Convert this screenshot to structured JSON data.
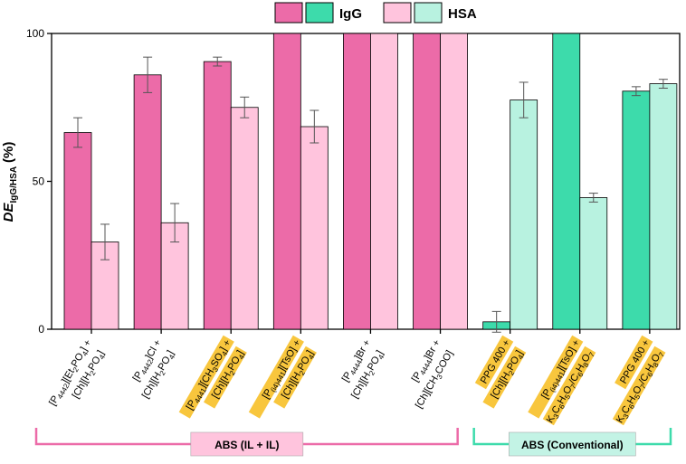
{
  "chart_data": {
    "type": "bar",
    "ylabel": {
      "main": "DE",
      "sub": "IgG/HSA",
      "unit": "(%)"
    },
    "ylim": [
      0,
      100
    ],
    "yticks": [
      "0",
      "50",
      "100"
    ],
    "legend": {
      "placement": "top-center",
      "IgG": "IgG",
      "HSA": "HSA"
    },
    "colors": {
      "ionic_IgG": "#ec6ba8",
      "ionic_HSA": "#ffc4dd",
      "conv_IgG": "#3ddbab",
      "conv_HSA": "#b8f2e0",
      "highlight": "#f8c63d",
      "bracket_ionic": "#ec6ba8",
      "bracket_conv": "#3ddbab",
      "box_ionic": "#ffc4dd",
      "box_conv": "#c3f3e5"
    },
    "categories": [
      {
        "lines": [
          "[P4442][Et2PO4] +",
          "[Ch][H2PO4]"
        ],
        "highlight": false,
        "system": "ionic",
        "IgG": 66.5,
        "IgG_err": 5.0,
        "HSA": 29.5,
        "HSA_err": 6.0
      },
      {
        "lines": [
          "[P4442]Cl +",
          "[Ch][H2PO4]"
        ],
        "highlight": false,
        "system": "ionic",
        "IgG": 86.0,
        "IgG_err": 6.0,
        "HSA": 36.0,
        "HSA_err": 6.5
      },
      {
        "lines": [
          "[P4441][CH3SO4] +",
          "[Ch][H2PO4]"
        ],
        "highlight": true,
        "system": "ionic",
        "IgG": 90.5,
        "IgG_err": 1.5,
        "HSA": 75.0,
        "HSA_err": 3.5
      },
      {
        "lines": [
          "[P(i4)441][TsO] +",
          "[Ch][H2PO4]"
        ],
        "highlight": true,
        "system": "ionic",
        "IgG": 100,
        "IgG_err": null,
        "HSA": 68.5,
        "HSA_err": 5.5
      },
      {
        "lines": [
          "[P4444]Br +",
          "[Ch][H2PO4]"
        ],
        "highlight": false,
        "system": "ionic",
        "IgG": 100,
        "IgG_err": null,
        "HSA": 100,
        "HSA_err": null
      },
      {
        "lines": [
          "[P4444]Br +",
          "[Ch][CH3COO]"
        ],
        "highlight": false,
        "system": "ionic",
        "IgG": 100,
        "IgG_err": null,
        "HSA": 100,
        "HSA_err": null
      },
      {
        "lines": [
          "PPG 400 +",
          "[Ch][H2PO4]"
        ],
        "highlight": true,
        "system": "conventional",
        "IgG": 2.5,
        "IgG_err": 3.5,
        "HSA": 77.5,
        "HSA_err": 6.0
      },
      {
        "lines": [
          "[P(i4)441][TsO] +",
          "K3C6H5O7/C6H8O7"
        ],
        "highlight": true,
        "system": "conventional",
        "IgG": 100,
        "IgG_err": null,
        "HSA": 44.5,
        "HSA_err": 1.5
      },
      {
        "lines": [
          "PPG 400 +",
          "K3C6H5O7/C6H8O7"
        ],
        "highlight": true,
        "system": "conventional",
        "IgG": 80.5,
        "IgG_err": 1.5,
        "HSA": 83.0,
        "HSA_err": 1.5
      }
    ],
    "groups": [
      {
        "label": "ABS (IL + IL)",
        "system": "ionic",
        "from": 0,
        "to": 5
      },
      {
        "label": "ABS (Conventional)",
        "system": "conventional",
        "from": 6,
        "to": 8
      }
    ]
  }
}
